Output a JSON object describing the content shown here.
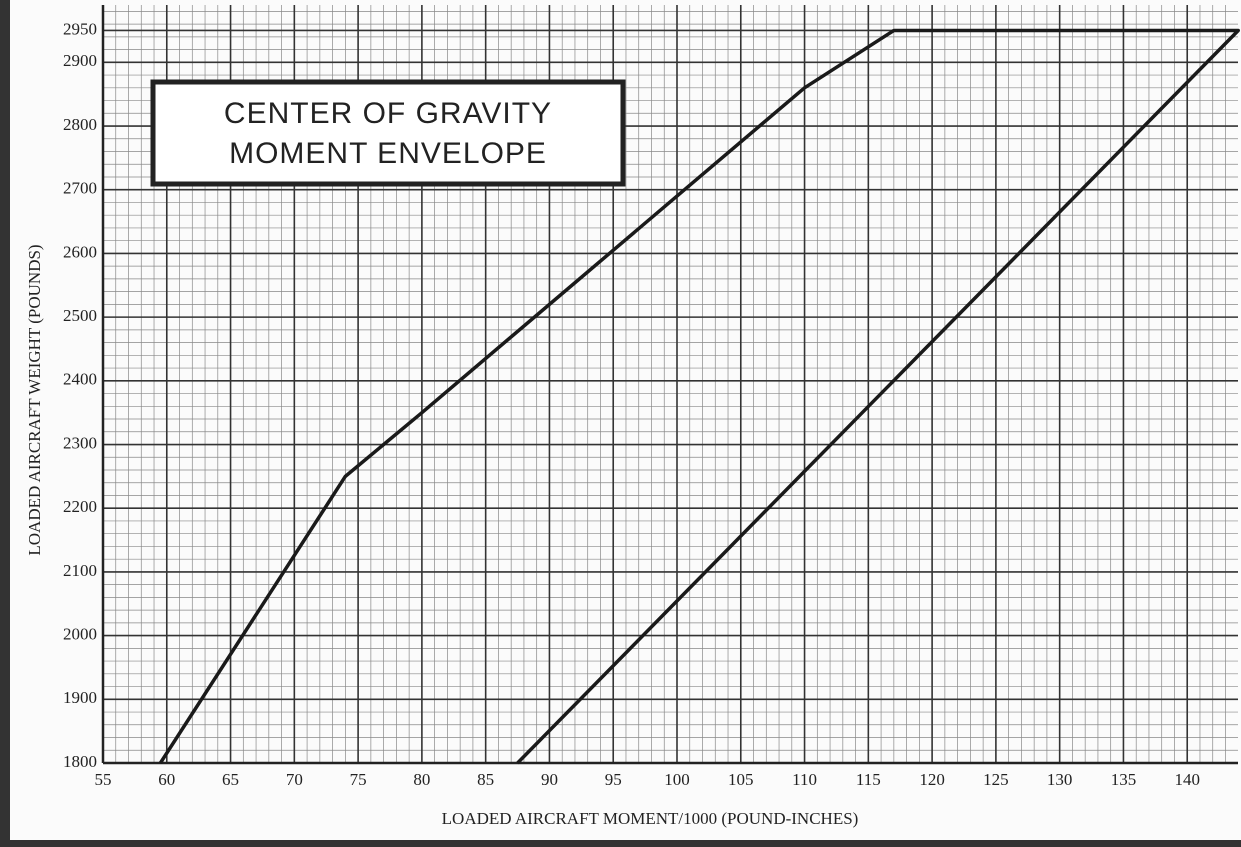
{
  "chart_data": {
    "type": "line",
    "title": [
      "CENTER OF GRAVITY",
      "MOMENT ENVELOPE"
    ],
    "x_label": "LOADED AIRCRAFT MOMENT/1000 (POUND-INCHES)",
    "y_label": "LOADED AIRCRAFT WEIGHT (POUNDS)",
    "x": [
      59.5,
      74,
      80,
      90,
      100,
      110,
      117,
      144,
      87.5
    ],
    "series": [
      {
        "color": "#1a1a1a",
        "values": [
          1800,
          2250,
          2350,
          2520,
          2690,
          2860,
          2950,
          2950,
          1800
        ]
      }
    ],
    "xlim": [
      55,
      145
    ],
    "ylim": [
      1800,
      2990
    ],
    "xticks": [
      55,
      60,
      65,
      70,
      75,
      80,
      85,
      90,
      95,
      100,
      105,
      110,
      115,
      120,
      125,
      130,
      135,
      140
    ],
    "yticks": [
      1800,
      1900,
      2000,
      2100,
      2200,
      2300,
      2400,
      2500,
      2600,
      2700,
      2800,
      2900,
      2950
    ],
    "grid": true
  }
}
